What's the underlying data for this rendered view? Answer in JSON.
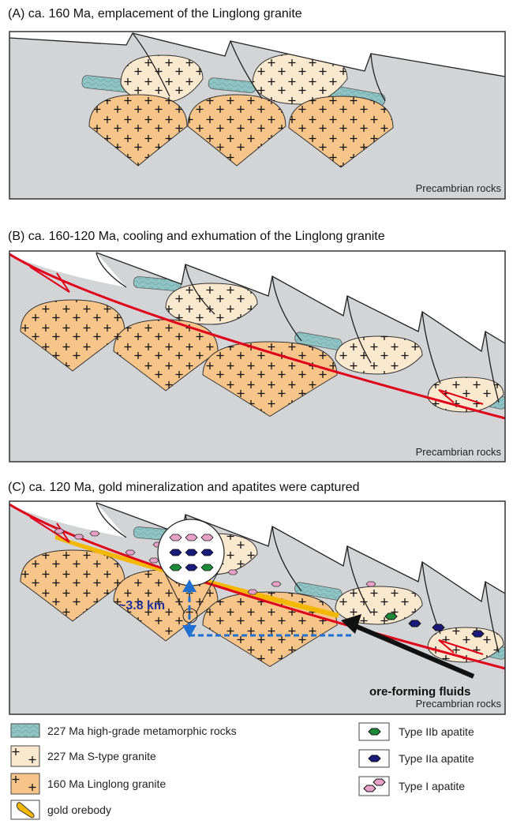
{
  "panels": [
    {
      "title": "(A) ca. 160 Ma, emplacement of the Linglong granite",
      "rock_label": "Precambrian rocks"
    },
    {
      "title": "(B) ca. 160-120 Ma, cooling and exhumation of the Linglong granite",
      "rock_label": "Precambrian rocks"
    },
    {
      "title": "(C) ca. 120 Ma, gold mineralization and apatites were captured",
      "rock_label": "Precambrian rocks",
      "depth_label": "~3.8 km",
      "fluid_label": "ore-forming fluids"
    }
  ],
  "legend": [
    {
      "label": "227 Ma high-grade metamorphic rocks"
    },
    {
      "label": "227 Ma S-type granite"
    },
    {
      "label": "160 Ma Linglong granite"
    },
    {
      "label": "gold orebody"
    },
    {
      "label": "Type IIb apatite"
    },
    {
      "label": "Type IIa apatite"
    },
    {
      "label": "Type I apatite"
    }
  ]
}
